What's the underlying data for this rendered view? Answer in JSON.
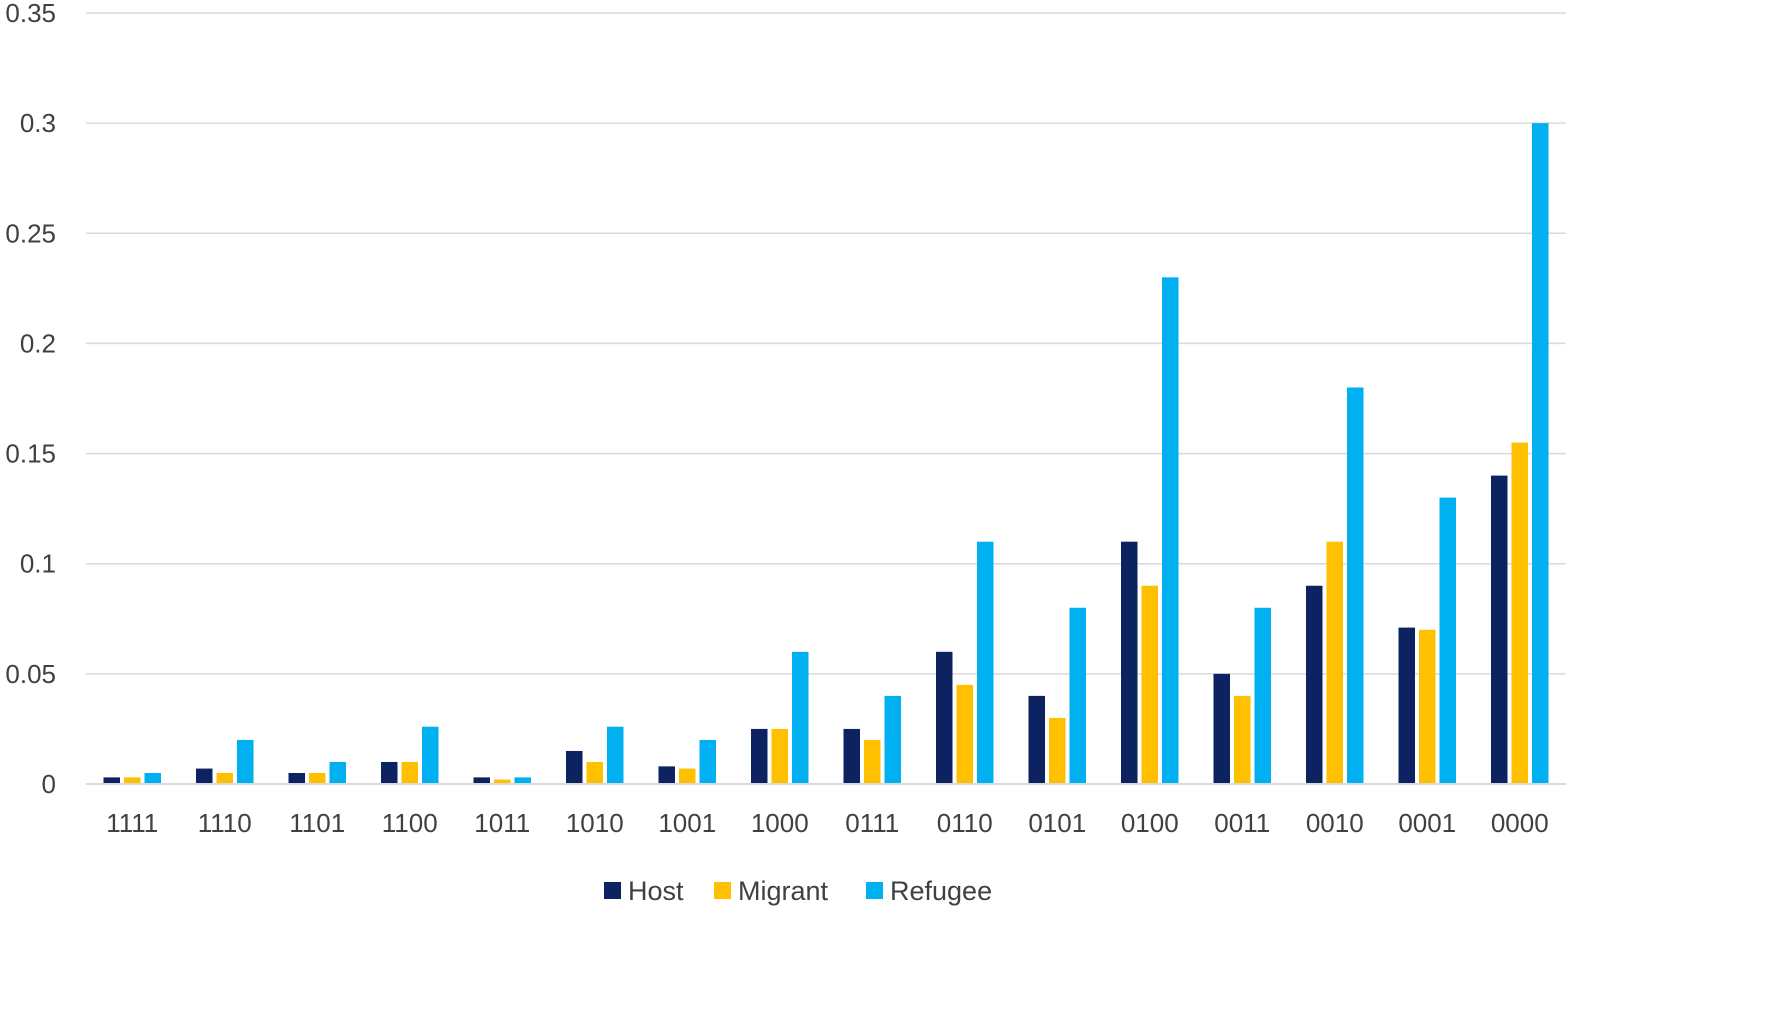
{
  "chart_data": {
    "type": "bar",
    "title": "",
    "xlabel": "",
    "ylabel": "",
    "ylim": [
      0,
      0.35
    ],
    "yticks": [
      "0",
      "0.05",
      "0.1",
      "0.15",
      "0.2",
      "0.25",
      "0.3",
      "0.35"
    ],
    "grid": true,
    "legend_position": "bottom",
    "categories": [
      "1111",
      "1110",
      "1101",
      "1100",
      "1011",
      "1010",
      "1001",
      "1000",
      "0111",
      "0110",
      "0101",
      "0100",
      "0011",
      "0010",
      "0001",
      "0000"
    ],
    "series": [
      {
        "name": "Host",
        "color": "#0d2260",
        "values": [
          0.003,
          0.007,
          0.005,
          0.01,
          0.003,
          0.015,
          0.008,
          0.025,
          0.025,
          0.06,
          0.04,
          0.11,
          0.05,
          0.09,
          0.071,
          0.14
        ]
      },
      {
        "name": "Migrant",
        "color": "#ffc000",
        "values": [
          0.003,
          0.005,
          0.005,
          0.01,
          0.002,
          0.01,
          0.007,
          0.025,
          0.02,
          0.045,
          0.03,
          0.09,
          0.04,
          0.11,
          0.07,
          0.155
        ]
      },
      {
        "name": "Refugee",
        "color": "#00b0f0",
        "values": [
          0.005,
          0.02,
          0.01,
          0.026,
          0.003,
          0.026,
          0.02,
          0.06,
          0.04,
          0.11,
          0.08,
          0.23,
          0.08,
          0.18,
          0.13,
          0.3
        ]
      }
    ]
  }
}
